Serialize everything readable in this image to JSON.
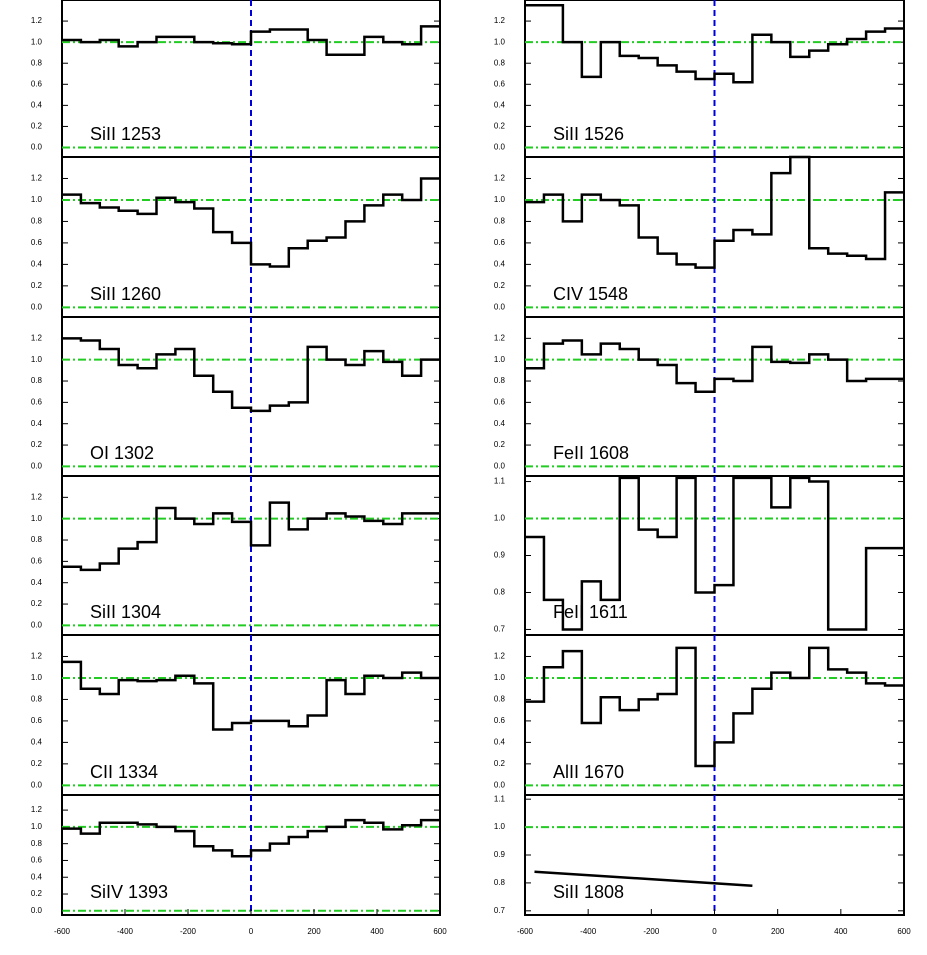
{
  "chart_data": [
    {
      "type": "line",
      "label": "SiII 1253",
      "xlim": [
        -600,
        600
      ],
      "ylim": [
        -0.09,
        1.4
      ],
      "yticks": [
        {
          "value": 0,
          "label": "0.0"
        },
        0.2,
        0.4,
        0.6,
        0.8,
        {
          "value": 1,
          "label": "1.0"
        },
        1.2
      ],
      "hlines": [
        0,
        1
      ],
      "vline": 0,
      "x": [
        -570,
        -510,
        -450,
        -390,
        -330,
        -270,
        -210,
        -150,
        -90,
        -30,
        30,
        90,
        150,
        210,
        270,
        330,
        390,
        450,
        510,
        570
      ],
      "values": [
        1.02,
        1.0,
        1.02,
        0.96,
        1.0,
        1.05,
        1.05,
        1.0,
        0.99,
        0.98,
        1.1,
        1.12,
        1.12,
        1.02,
        0.88,
        0.88,
        1.05,
        1.0,
        0.98,
        1.15
      ]
    },
    {
      "type": "line",
      "label": "SiII 1260",
      "xlim": [
        -600,
        600
      ],
      "ylim": [
        -0.09,
        1.4
      ],
      "yticks": [
        {
          "value": 0,
          "label": "0.0"
        },
        0.2,
        0.4,
        0.6,
        0.8,
        {
          "value": 1,
          "label": "1.0"
        },
        1.2
      ],
      "hlines": [
        0,
        1
      ],
      "vline": 0,
      "x": [
        -570,
        -510,
        -450,
        -390,
        -330,
        -270,
        -210,
        -150,
        -90,
        -30,
        30,
        90,
        150,
        210,
        270,
        330,
        390,
        450,
        510,
        570
      ],
      "values": [
        1.05,
        0.97,
        0.93,
        0.9,
        0.87,
        1.02,
        0.98,
        0.92,
        0.7,
        0.6,
        0.4,
        0.38,
        0.55,
        0.62,
        0.65,
        0.8,
        0.95,
        1.05,
        1.0,
        1.2
      ]
    },
    {
      "type": "line",
      "label": "OI 1302",
      "xlim": [
        -600,
        600
      ],
      "ylim": [
        -0.09,
        1.4
      ],
      "yticks": [
        {
          "value": 0,
          "label": "0.0"
        },
        0.2,
        0.4,
        0.6,
        0.8,
        {
          "value": 1,
          "label": "1.0"
        },
        1.2
      ],
      "hlines": [
        0,
        1
      ],
      "vline": 0,
      "x": [
        -570,
        -510,
        -450,
        -390,
        -330,
        -270,
        -210,
        -150,
        -90,
        -30,
        30,
        90,
        150,
        210,
        270,
        330,
        390,
        450,
        510,
        570
      ],
      "values": [
        1.2,
        1.18,
        1.1,
        0.95,
        0.92,
        1.05,
        1.1,
        0.85,
        0.7,
        0.55,
        0.52,
        0.57,
        0.6,
        1.12,
        1.0,
        0.95,
        1.08,
        0.98,
        0.85,
        1.0
      ]
    },
    {
      "type": "line",
      "label": "SiII 1304",
      "xlim": [
        -600,
        600
      ],
      "ylim": [
        -0.09,
        1.4
      ],
      "yticks": [
        {
          "value": 0,
          "label": "0.0"
        },
        0.2,
        0.4,
        0.6,
        0.8,
        {
          "value": 1,
          "label": "1.0"
        },
        1.2
      ],
      "hlines": [
        0,
        1
      ],
      "vline": 0,
      "x": [
        -570,
        -510,
        -450,
        -390,
        -330,
        -270,
        -210,
        -150,
        -90,
        -30,
        30,
        90,
        150,
        210,
        270,
        330,
        390,
        450,
        510,
        570
      ],
      "values": [
        0.55,
        0.52,
        0.58,
        0.72,
        0.78,
        1.1,
        1.0,
        0.95,
        1.05,
        0.97,
        0.75,
        1.15,
        0.9,
        1.0,
        1.05,
        1.02,
        0.98,
        0.95,
        1.05,
        1.05
      ]
    },
    {
      "type": "line",
      "label": "CII 1334",
      "xlim": [
        -600,
        600
      ],
      "ylim": [
        -0.09,
        1.4
      ],
      "yticks": [
        {
          "value": 0,
          "label": "0.0"
        },
        0.2,
        0.4,
        0.6,
        0.8,
        {
          "value": 1,
          "label": "1.0"
        },
        1.2
      ],
      "hlines": [
        0,
        1
      ],
      "vline": 0,
      "x": [
        -570,
        -510,
        -450,
        -390,
        -330,
        -270,
        -210,
        -150,
        -90,
        -30,
        30,
        90,
        150,
        210,
        270,
        330,
        390,
        450,
        510,
        570
      ],
      "values": [
        1.15,
        0.9,
        0.85,
        0.98,
        0.97,
        0.98,
        1.02,
        0.95,
        0.52,
        0.58,
        0.6,
        0.6,
        0.55,
        0.65,
        0.98,
        0.85,
        1.02,
        1.0,
        1.05,
        1.0
      ]
    },
    {
      "type": "line",
      "label": "SiIV 1393",
      "xlim": [
        -600,
        600
      ],
      "ylim": [
        -0.05,
        1.38
      ],
      "yticks": [
        {
          "value": 0,
          "label": "0.0"
        },
        0.2,
        0.4,
        0.6,
        0.8,
        {
          "value": 1,
          "label": "1.0"
        },
        1.2
      ],
      "xticks": [
        -600,
        -400,
        -200,
        0,
        200,
        400,
        600
      ],
      "hlines": [
        0,
        1
      ],
      "vline": 0,
      "x": [
        -570,
        -510,
        -450,
        -390,
        -330,
        -270,
        -210,
        -150,
        -90,
        -30,
        30,
        90,
        150,
        210,
        270,
        330,
        390,
        450,
        510,
        570
      ],
      "values": [
        0.98,
        0.92,
        1.05,
        1.05,
        1.03,
        1.0,
        0.95,
        0.77,
        0.72,
        0.65,
        0.72,
        0.8,
        0.88,
        0.95,
        1.0,
        1.08,
        1.05,
        0.97,
        1.02,
        1.08
      ]
    },
    {
      "type": "line",
      "label": "SiII 1526",
      "xlim": [
        -600,
        600
      ],
      "ylim": [
        -0.09,
        1.4
      ],
      "yticks": [
        {
          "value": 0,
          "label": "0.0"
        },
        0.2,
        0.4,
        0.6,
        0.8,
        {
          "value": 1,
          "label": "1.0"
        },
        1.2
      ],
      "hlines": [
        0,
        1
      ],
      "vline": 0,
      "x": [
        -570,
        -510,
        -450,
        -390,
        -330,
        -270,
        -210,
        -150,
        -90,
        -30,
        30,
        90,
        150,
        210,
        270,
        330,
        390,
        450,
        510,
        570
      ],
      "values": [
        1.35,
        1.35,
        1.0,
        0.67,
        1.0,
        0.87,
        0.85,
        0.78,
        0.72,
        0.65,
        0.7,
        0.62,
        1.07,
        1.0,
        0.86,
        0.92,
        0.98,
        1.03,
        1.1,
        1.13
      ]
    },
    {
      "type": "line",
      "label": "CIV 1548",
      "xlim": [
        -600,
        600
      ],
      "ylim": [
        -0.09,
        1.4
      ],
      "yticks": [
        {
          "value": 0,
          "label": "0.0"
        },
        0.2,
        0.4,
        0.6,
        0.8,
        {
          "value": 1,
          "label": "1.0"
        },
        1.2
      ],
      "hlines": [
        0,
        1
      ],
      "vline": 0,
      "x": [
        -570,
        -510,
        -450,
        -390,
        -330,
        -270,
        -210,
        -150,
        -90,
        -30,
        30,
        90,
        150,
        210,
        270,
        330,
        390,
        450,
        510,
        570
      ],
      "values": [
        0.98,
        1.05,
        0.8,
        1.05,
        1.0,
        0.95,
        0.65,
        0.5,
        0.4,
        0.37,
        0.62,
        0.72,
        0.68,
        1.25,
        1.4,
        0.55,
        0.5,
        0.48,
        0.45,
        1.07
      ]
    },
    {
      "type": "line",
      "label": "FeII 1608",
      "xlim": [
        -600,
        600
      ],
      "ylim": [
        -0.09,
        1.4
      ],
      "yticks": [
        {
          "value": 0,
          "label": "0.0"
        },
        0.2,
        0.4,
        0.6,
        0.8,
        {
          "value": 1,
          "label": "1.0"
        },
        1.2
      ],
      "hlines": [
        0,
        1
      ],
      "vline": 0,
      "x": [
        -570,
        -510,
        -450,
        -390,
        -330,
        -270,
        -210,
        -150,
        -90,
        -30,
        30,
        90,
        150,
        210,
        270,
        330,
        390,
        450,
        510,
        570
      ],
      "values": [
        0.92,
        1.15,
        1.18,
        1.05,
        1.15,
        1.1,
        1.0,
        0.95,
        0.78,
        0.7,
        0.82,
        0.8,
        1.12,
        0.98,
        0.97,
        1.05,
        1.0,
        0.8,
        0.82,
        0.82
      ]
    },
    {
      "type": "line",
      "label": "FeII 1611",
      "xlim": [
        -600,
        600
      ],
      "ylim": [
        0.685,
        1.115
      ],
      "yticks": [
        0.7,
        0.8,
        0.9,
        {
          "value": 1,
          "label": "1.0"
        },
        1.1
      ],
      "hlines": [
        1
      ],
      "vline": 0,
      "x": [
        -570,
        -510,
        -450,
        -390,
        -330,
        -270,
        -210,
        -150,
        -90,
        -30,
        30,
        90,
        150,
        210,
        270,
        330,
        390,
        450,
        510,
        570
      ],
      "values": [
        0.95,
        0.78,
        0.7,
        0.83,
        0.78,
        1.11,
        0.97,
        0.95,
        1.11,
        0.8,
        0.82,
        1.11,
        1.11,
        1.03,
        1.11,
        1.1,
        0.7,
        0.7,
        0.92,
        0.92
      ]
    },
    {
      "type": "line",
      "label": "AlII 1670",
      "xlim": [
        -600,
        600
      ],
      "ylim": [
        -0.09,
        1.4
      ],
      "yticks": [
        {
          "value": 0,
          "label": "0.0"
        },
        0.2,
        0.4,
        0.6,
        0.8,
        {
          "value": 1,
          "label": "1.0"
        },
        1.2
      ],
      "hlines": [
        0,
        1
      ],
      "vline": 0,
      "x": [
        -570,
        -510,
        -450,
        -390,
        -330,
        -270,
        -210,
        -150,
        -90,
        -30,
        30,
        90,
        150,
        210,
        270,
        330,
        390,
        450,
        510,
        570
      ],
      "values": [
        0.78,
        1.1,
        1.25,
        0.58,
        0.82,
        0.7,
        0.8,
        0.85,
        1.28,
        0.18,
        0.4,
        0.67,
        0.9,
        1.05,
        1.0,
        1.28,
        1.08,
        1.05,
        0.95,
        0.93
      ]
    },
    {
      "type": "straight",
      "label": "SiII 1808",
      "xlim": [
        -600,
        600
      ],
      "ylim": [
        0.685,
        1.115
      ],
      "yticks": [
        0.7,
        0.8,
        0.9,
        {
          "value": 1,
          "label": "1.0"
        },
        1.1
      ],
      "xticks": [
        -600,
        -400,
        -200,
        0,
        200,
        400,
        600
      ],
      "hlines": [
        1
      ],
      "vline": 0,
      "x": [
        -570,
        120
      ],
      "values": [
        0.84,
        0.79
      ]
    }
  ]
}
